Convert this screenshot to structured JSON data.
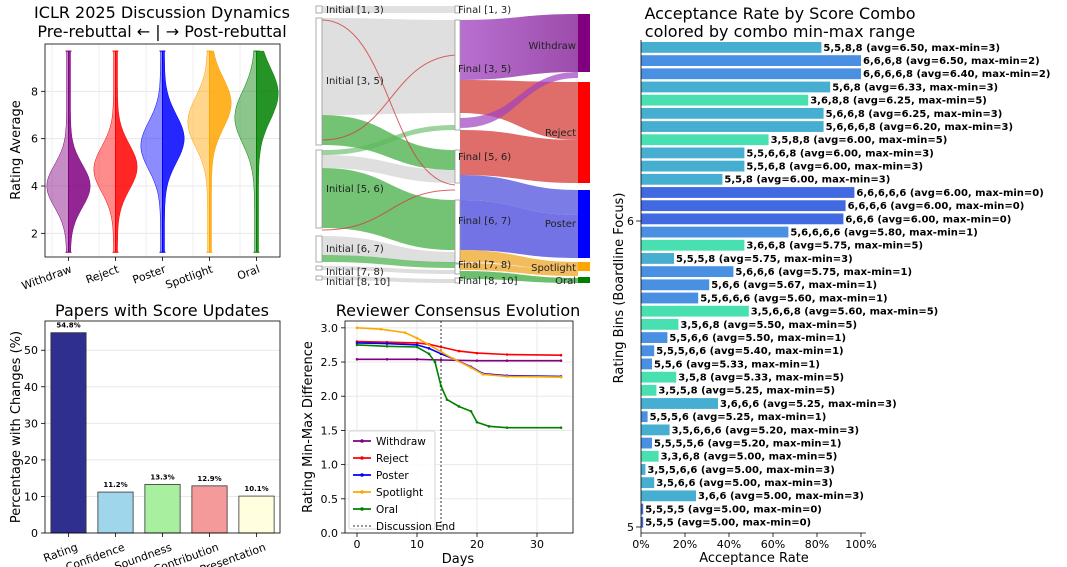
{
  "violin": {
    "title_line1": "ICLR 2025 Discussion Dynamics",
    "title_line2": "Pre-rebuttal ← | → Post-rebuttal",
    "ylabel": "Rating Average",
    "yticks": [
      2,
      4,
      6,
      8
    ],
    "ylim": [
      1.0,
      10.0
    ],
    "categories": [
      "Withdraw",
      "Reject",
      "Poster",
      "Spotlight",
      "Oral"
    ],
    "colors": [
      "#800080",
      "#ff0000",
      "#0000ff",
      "#ffa500",
      "#008000"
    ],
    "range": [
      [
        1.2,
        9.7
      ],
      [
        1.2,
        9.7
      ],
      [
        1.2,
        9.7
      ],
      [
        1.2,
        9.7
      ],
      [
        1.2,
        9.7
      ]
    ],
    "centers": [
      [
        4.0,
        4.0
      ],
      [
        4.7,
        4.8
      ],
      [
        5.7,
        6.0
      ],
      [
        6.7,
        7.5
      ],
      [
        6.9,
        7.9
      ]
    ]
  },
  "sankey": {
    "left_nodes": [
      "Initial [1, 3)",
      "Initial [3, 5)",
      "Initial [5, 6)",
      "Initial [6, 7)",
      "Initial [7, 8)",
      "Initial [8, 10]"
    ],
    "mid_nodes": [
      "Final [1, 3)",
      "Final [3, 5)",
      "Final [5, 6)",
      "Final [6, 7)",
      "Final [7, 8)",
      "Final [8, 10]"
    ],
    "right_nodes": [
      "Withdraw",
      "Reject",
      "Poster",
      "Spotlight",
      "Oral"
    ],
    "right_colors": [
      "#800080",
      "#ff0000",
      "#0000ff",
      "#ffa500",
      "#008000"
    ]
  },
  "acceptance": {
    "title_line1": "Acceptance Rate by Score Combo",
    "title_line2": "colored by combo min-max range",
    "xlabel": "Acceptance Rate",
    "ylabel": "Rating Bins (Boardline Focus)",
    "xticks": [
      "0%",
      "20%",
      "40%",
      "60%",
      "80%",
      "100%"
    ],
    "ytick_labels": [
      "6",
      "5"
    ],
    "colors": {
      "0": "#4169e1",
      "1": "#4a90e2",
      "2": "#4a90e2",
      "3": "#46aed0",
      "5": "#48e0b0"
    },
    "bars": [
      {
        "label": "5,5,8,8 (avg=6.50, max-min=3)",
        "value": 0.82,
        "range": 3
      },
      {
        "label": "6,6,6,8 (avg=6.50, max-min=2)",
        "value": 1.0,
        "range": 2
      },
      {
        "label": "6,6,6,6,8 (avg=6.40, max-min=2)",
        "value": 1.0,
        "range": 2
      },
      {
        "label": "5,6,8 (avg=6.33, max-min=3)",
        "value": 0.86,
        "range": 3
      },
      {
        "label": "3,6,8,8 (avg=6.25, max-min=5)",
        "value": 0.76,
        "range": 5
      },
      {
        "label": "5,6,6,8 (avg=6.25, max-min=3)",
        "value": 0.83,
        "range": 3
      },
      {
        "label": "5,6,6,6,8 (avg=6.20, max-min=3)",
        "value": 0.83,
        "range": 3
      },
      {
        "label": "3,5,8,8 (avg=6.00, max-min=5)",
        "value": 0.58,
        "range": 5
      },
      {
        "label": "5,5,6,6,8 (avg=6.00, max-min=3)",
        "value": 0.47,
        "range": 3
      },
      {
        "label": "5,5,6,8 (avg=6.00, max-min=3)",
        "value": 0.47,
        "range": 3
      },
      {
        "label": "5,5,8 (avg=6.00, max-min=3)",
        "value": 0.37,
        "range": 3
      },
      {
        "label": "6,6,6,6,6 (avg=6.00, max-min=0)",
        "value": 0.97,
        "range": 0
      },
      {
        "label": "6,6,6,6 (avg=6.00, max-min=0)",
        "value": 0.93,
        "range": 0
      },
      {
        "label": "6,6,6 (avg=6.00, max-min=0)",
        "value": 0.92,
        "range": 0
      },
      {
        "label": "5,6,6,6,6 (avg=5.80, max-min=1)",
        "value": 0.67,
        "range": 1
      },
      {
        "label": "3,6,6,8 (avg=5.75, max-min=5)",
        "value": 0.47,
        "range": 5
      },
      {
        "label": "5,5,5,8 (avg=5.75, max-min=3)",
        "value": 0.15,
        "range": 3
      },
      {
        "label": "5,6,6,6 (avg=5.75, max-min=1)",
        "value": 0.42,
        "range": 1
      },
      {
        "label": "5,6,6 (avg=5.67, max-min=1)",
        "value": 0.31,
        "range": 1
      },
      {
        "label": "5,5,6,6,6 (avg=5.60, max-min=1)",
        "value": 0.26,
        "range": 1
      },
      {
        "label": "3,5,6,6,8 (avg=5.60, max-min=5)",
        "value": 0.49,
        "range": 5
      },
      {
        "label": "3,5,6,8 (avg=5.50, max-min=5)",
        "value": 0.17,
        "range": 5
      },
      {
        "label": "5,5,6,6 (avg=5.50, max-min=1)",
        "value": 0.12,
        "range": 1
      },
      {
        "label": "5,5,5,6,6 (avg=5.40, max-min=1)",
        "value": 0.06,
        "range": 1
      },
      {
        "label": "5,5,6 (avg=5.33, max-min=1)",
        "value": 0.05,
        "range": 1
      },
      {
        "label": "3,5,8 (avg=5.33, max-min=5)",
        "value": 0.16,
        "range": 5
      },
      {
        "label": "3,5,5,8 (avg=5.25, max-min=5)",
        "value": 0.07,
        "range": 5
      },
      {
        "label": "3,6,6,6 (avg=5.25, max-min=3)",
        "value": 0.35,
        "range": 3
      },
      {
        "label": "5,5,5,6 (avg=5.25, max-min=1)",
        "value": 0.03,
        "range": 1
      },
      {
        "label": "3,5,6,6,6 (avg=5.20, max-min=3)",
        "value": 0.13,
        "range": 3
      },
      {
        "label": "5,5,5,5,6 (avg=5.20, max-min=1)",
        "value": 0.05,
        "range": 1
      },
      {
        "label": "3,3,6,8 (avg=5.00, max-min=5)",
        "value": 0.08,
        "range": 5
      },
      {
        "label": "3,5,5,6,6 (avg=5.00, max-min=3)",
        "value": 0.02,
        "range": 3
      },
      {
        "label": "3,5,6,6 (avg=5.00, max-min=3)",
        "value": 0.06,
        "range": 3
      },
      {
        "label": "3,6,6 (avg=5.00, max-min=3)",
        "value": 0.25,
        "range": 3
      },
      {
        "label": "5,5,5,5 (avg=5.00, max-min=0)",
        "value": 0.01,
        "range": 0
      },
      {
        "label": "5,5,5 (avg=5.00, max-min=0)",
        "value": 0.01,
        "range": 0
      }
    ]
  },
  "updates": {
    "title": "Papers with Score Updates",
    "ylabel": "Percentage with Changes (%)",
    "categories": [
      "Rating",
      "Confidence",
      "Soundness",
      "Contribution",
      "Presentation"
    ],
    "values": [
      54.8,
      11.2,
      13.3,
      12.9,
      10.1
    ],
    "value_labels": [
      "54.8%",
      "11.2%",
      "13.3%",
      "12.9%",
      "10.1%"
    ],
    "colors": [
      "#2f2f8f",
      "#a0d6ec",
      "#a8f0a0",
      "#f49a9a",
      "#ffffe0"
    ],
    "yticks": [
      0,
      10,
      20,
      30,
      40,
      50
    ],
    "ylim": [
      0,
      58
    ]
  },
  "consensus": {
    "title": "Reviewer Consensus Evolution",
    "xlabel": "Days",
    "ylabel": "Rating Min-Max Difference",
    "xticks": [
      0,
      10,
      20,
      30
    ],
    "yticks": [
      "0.0",
      "0.5",
      "1.0",
      "1.5",
      "2.0",
      "2.5",
      "3.0"
    ],
    "xlim": [
      -2,
      36
    ],
    "ylim": [
      0,
      3.1
    ],
    "discussion_end_day": 14,
    "legend_end_label": "Discussion End",
    "series": [
      {
        "name": "Withdraw",
        "color": "#800080",
        "values": [
          [
            0,
            2.54
          ],
          [
            5,
            2.54
          ],
          [
            10,
            2.54
          ],
          [
            14,
            2.53
          ],
          [
            20,
            2.52
          ],
          [
            25,
            2.52
          ],
          [
            34,
            2.52
          ]
        ]
      },
      {
        "name": "Reject",
        "color": "#ff0000",
        "values": [
          [
            0,
            2.8
          ],
          [
            5,
            2.79
          ],
          [
            10,
            2.78
          ],
          [
            12,
            2.76
          ],
          [
            14,
            2.72
          ],
          [
            17,
            2.66
          ],
          [
            20,
            2.63
          ],
          [
            25,
            2.61
          ],
          [
            34,
            2.6
          ]
        ]
      },
      {
        "name": "Poster",
        "color": "#0000ff",
        "values": [
          [
            0,
            2.78
          ],
          [
            5,
            2.77
          ],
          [
            10,
            2.75
          ],
          [
            12,
            2.7
          ],
          [
            14,
            2.62
          ],
          [
            16,
            2.55
          ],
          [
            19,
            2.43
          ],
          [
            21,
            2.33
          ],
          [
            25,
            2.3
          ],
          [
            34,
            2.29
          ]
        ]
      },
      {
        "name": "Spotlight",
        "color": "#ffa500",
        "values": [
          [
            0,
            3.0
          ],
          [
            4,
            2.98
          ],
          [
            8,
            2.93
          ],
          [
            10,
            2.85
          ],
          [
            12,
            2.75
          ],
          [
            14,
            2.65
          ],
          [
            16,
            2.55
          ],
          [
            19,
            2.42
          ],
          [
            21,
            2.32
          ],
          [
            25,
            2.29
          ],
          [
            34,
            2.28
          ]
        ]
      },
      {
        "name": "Oral",
        "color": "#008000",
        "values": [
          [
            0,
            2.75
          ],
          [
            5,
            2.73
          ],
          [
            10,
            2.72
          ],
          [
            12,
            2.62
          ],
          [
            13,
            2.5
          ],
          [
            14,
            2.15
          ],
          [
            15,
            1.95
          ],
          [
            17,
            1.85
          ],
          [
            19,
            1.78
          ],
          [
            20,
            1.62
          ],
          [
            22,
            1.56
          ],
          [
            25,
            1.54
          ],
          [
            34,
            1.54
          ]
        ]
      }
    ]
  }
}
